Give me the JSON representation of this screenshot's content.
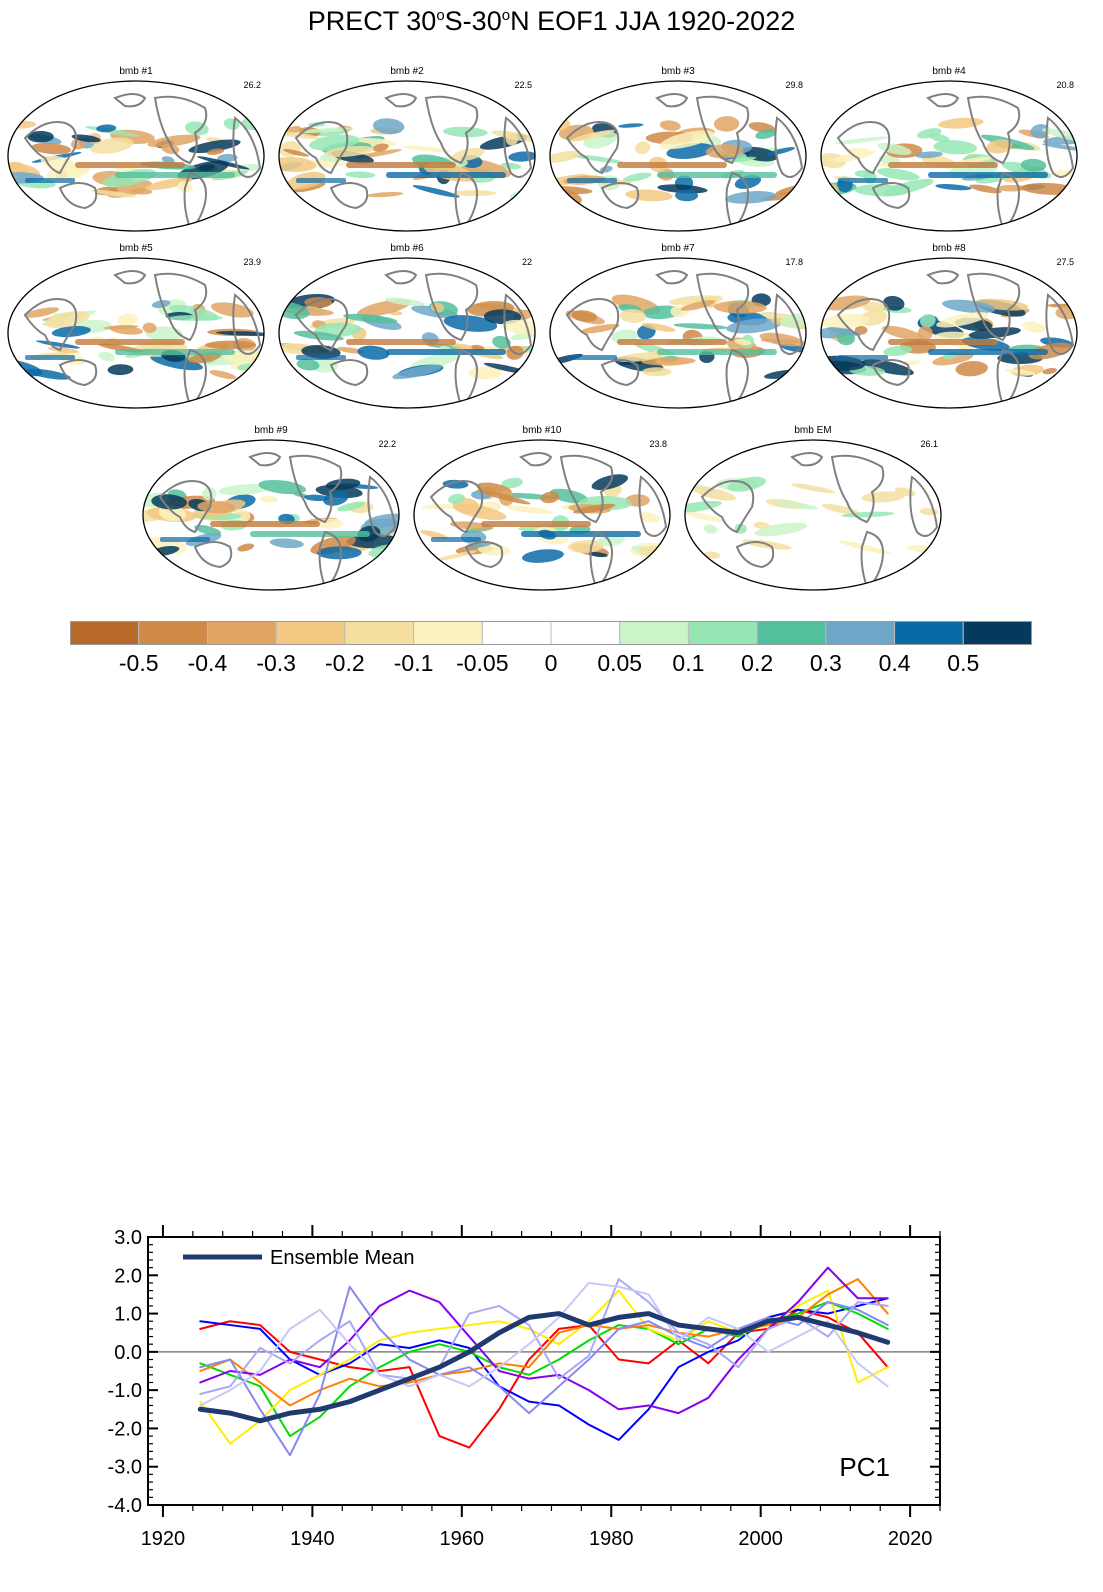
{
  "title": {
    "prefix": "PRECT 30",
    "deg1": "o",
    "mid": "S-30",
    "deg2": "o",
    "suffix": "N EOF1 JJA 1920-2022"
  },
  "panels": [
    {
      "label": "bmb #1",
      "pct": "26.2"
    },
    {
      "label": "bmb #2",
      "pct": "22.5"
    },
    {
      "label": "bmb #3",
      "pct": "29.8"
    },
    {
      "label": "bmb #4",
      "pct": "20.8"
    },
    {
      "label": "bmb #5",
      "pct": "23.9"
    },
    {
      "label": "bmb #6",
      "pct": "22"
    },
    {
      "label": "bmb #7",
      "pct": "17.8"
    },
    {
      "label": "bmb #8",
      "pct": "27.5"
    },
    {
      "label": "bmb #9",
      "pct": "22.2"
    },
    {
      "label": "bmb #10",
      "pct": "23.8"
    },
    {
      "label": "bmb EM",
      "pct": "26.1"
    }
  ],
  "colorbar": {
    "colors": [
      "#b86a2a",
      "#cf8a46",
      "#e0a564",
      "#f2c882",
      "#f5dfa0",
      "#fbf2bd",
      "#ffffff",
      "#ffffff",
      "#c9f5c9",
      "#96e6b4",
      "#54bf9c",
      "#6ea8c8",
      "#0a6aa8",
      "#053a5c"
    ],
    "labels": [
      "-0.5",
      "-0.4",
      "-0.3",
      "-0.2",
      "-0.1",
      "-0.05",
      "0",
      "0.05",
      "0.1",
      "0.2",
      "0.3",
      "0.4",
      "0.5"
    ]
  },
  "chart_data": {
    "type": "line",
    "title": "",
    "annotation": "PC1",
    "xlabel": "",
    "ylabel": "",
    "xlim": [
      1918,
      2024
    ],
    "ylim": [
      -4.0,
      3.0
    ],
    "x_ticks": [
      "1920",
      "1940",
      "1960",
      "1980",
      "2000",
      "2020"
    ],
    "y_ticks": [
      "-4.0",
      "-3.0",
      "-2.0",
      "-1.0",
      "0.0",
      "1.0",
      "2.0",
      "3.0"
    ],
    "legend": {
      "position": "top-left",
      "entries": [
        "Ensemble Mean"
      ]
    },
    "zero_line": true,
    "x": [
      1925,
      1929,
      1933,
      1937,
      1941,
      1945,
      1949,
      1953,
      1957,
      1961,
      1965,
      1969,
      1973,
      1977,
      1981,
      1985,
      1989,
      1993,
      1997,
      2001,
      2005,
      2009,
      2013,
      2017
    ],
    "series": [
      {
        "name": "Ensemble Mean",
        "color": "#203a70",
        "width": 5,
        "values": [
          -1.5,
          -1.6,
          -1.8,
          -1.6,
          -1.5,
          -1.3,
          -1.0,
          -0.7,
          -0.4,
          0.0,
          0.5,
          0.9,
          1.0,
          0.7,
          0.9,
          1.0,
          0.7,
          0.6,
          0.5,
          0.8,
          0.9,
          0.7,
          0.5,
          0.25
        ]
      },
      {
        "color": "#ff0000",
        "width": 2,
        "values": [
          0.6,
          0.8,
          0.7,
          0.0,
          -0.2,
          -0.4,
          -0.5,
          -0.4,
          -2.2,
          -2.5,
          -1.5,
          -0.2,
          0.6,
          0.7,
          -0.2,
          -0.3,
          0.3,
          -0.3,
          0.5,
          0.6,
          1.1,
          0.9,
          0.5,
          -0.4
        ]
      },
      {
        "color": "#0000ff",
        "width": 2,
        "values": [
          0.8,
          0.7,
          0.6,
          -0.2,
          -0.6,
          -0.3,
          0.2,
          0.1,
          0.3,
          0.1,
          -0.9,
          -1.3,
          -1.4,
          -1.9,
          -2.3,
          -1.5,
          -0.4,
          0.0,
          0.3,
          0.9,
          1.1,
          1.0,
          1.2,
          1.4
        ]
      },
      {
        "color": "#00dd00",
        "width": 2,
        "values": [
          -0.3,
          -0.6,
          -0.9,
          -2.2,
          -1.7,
          -0.9,
          -0.4,
          0.0,
          0.2,
          0.0,
          -0.4,
          -0.6,
          -0.2,
          0.3,
          0.7,
          0.6,
          0.2,
          0.6,
          0.4,
          0.8,
          1.0,
          1.3,
          1.0,
          0.6
        ]
      },
      {
        "color": "#ffee00",
        "width": 2,
        "values": [
          -1.3,
          -2.4,
          -1.8,
          -1.0,
          -0.6,
          -0.2,
          0.3,
          0.5,
          0.6,
          0.7,
          0.8,
          0.6,
          0.2,
          0.8,
          1.6,
          0.6,
          0.3,
          0.8,
          0.5,
          0.7,
          1.2,
          1.6,
          -0.8,
          -0.4
        ]
      },
      {
        "color": "#ff8000",
        "width": 2,
        "values": [
          -0.5,
          -0.2,
          -0.8,
          -1.4,
          -1.0,
          -0.7,
          -0.9,
          -0.8,
          -0.6,
          -0.5,
          -0.3,
          -0.4,
          0.5,
          0.7,
          0.6,
          0.7,
          0.5,
          0.4,
          0.6,
          0.7,
          0.9,
          1.5,
          1.9,
          1.0
        ]
      },
      {
        "color": "#8800ee",
        "width": 2,
        "values": [
          -0.8,
          -0.5,
          -0.6,
          -0.2,
          -0.4,
          0.3,
          1.2,
          1.6,
          1.3,
          0.4,
          -0.5,
          -0.7,
          -0.6,
          -1.0,
          -1.5,
          -1.4,
          -1.6,
          -1.2,
          -0.2,
          0.6,
          1.3,
          2.2,
          1.4,
          1.4
        ]
      },
      {
        "color": "#8888f0",
        "width": 2,
        "values": [
          -0.4,
          -0.2,
          -1.5,
          -2.7,
          -1.1,
          1.7,
          0.6,
          -0.2,
          -0.6,
          -0.4,
          -0.9,
          -1.6,
          -0.9,
          -0.2,
          0.6,
          0.8,
          0.4,
          0.1,
          0.6,
          0.9,
          0.7,
          1.3,
          1.1,
          0.7
        ]
      },
      {
        "color": "#a8a8f4",
        "width": 2,
        "values": [
          -1.1,
          -0.9,
          0.1,
          -0.3,
          0.3,
          0.8,
          -0.6,
          -0.7,
          -0.4,
          1.0,
          1.2,
          0.7,
          -0.7,
          -0.1,
          1.9,
          1.3,
          0.5,
          0.2,
          -0.4,
          0.6,
          0.9,
          0.4,
          1.3,
          1.2
        ]
      },
      {
        "color": "#c8c8f8",
        "width": 2,
        "values": [
          -1.4,
          -1.0,
          -0.5,
          0.6,
          1.1,
          0.2,
          -0.6,
          -0.9,
          -0.6,
          -0.9,
          -0.4,
          0.2,
          0.9,
          1.8,
          1.7,
          1.5,
          0.3,
          0.9,
          0.6,
          0.0,
          0.4,
          0.8,
          -0.3,
          -0.9
        ]
      }
    ]
  }
}
